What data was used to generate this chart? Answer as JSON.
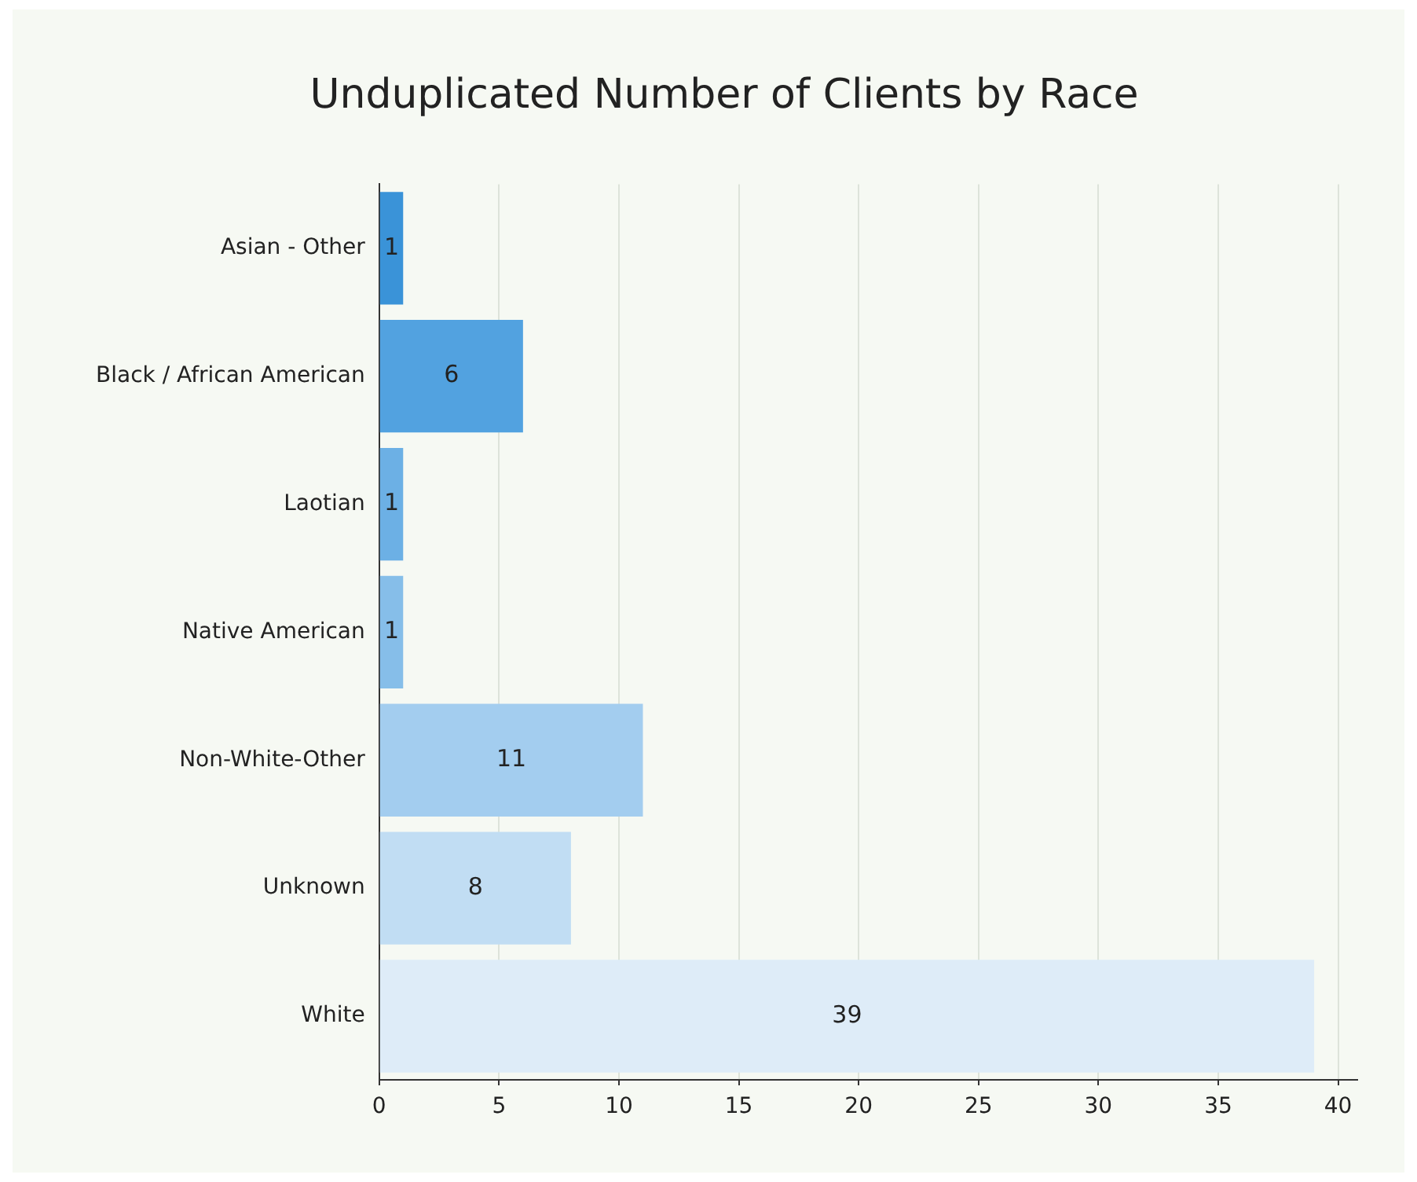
{
  "chart_data": {
    "type": "bar",
    "orientation": "horizontal",
    "title": "Unduplicated Number of Clients by Race",
    "categories": [
      "Asian - Other",
      "Black / African American",
      "Laotian",
      "Native American",
      "Non-White-Other",
      "Unknown",
      "White"
    ],
    "values": [
      1,
      6,
      1,
      1,
      11,
      8,
      39
    ],
    "colors": [
      "#3a93d8",
      "#52a2e0",
      "#6cb0e5",
      "#86bee9",
      "#a3cdef",
      "#c1ddf3",
      "#deecf8"
    ],
    "xlim": [
      0,
      40.8
    ],
    "xticks": [
      0,
      5,
      10,
      15,
      20,
      25,
      30,
      35,
      40
    ],
    "grid": "x",
    "data_labels": true
  }
}
